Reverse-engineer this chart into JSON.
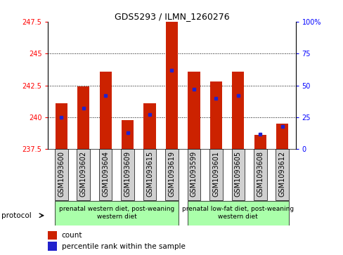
{
  "title": "GDS5293 / ILMN_1260276",
  "samples": [
    "GSM1093600",
    "GSM1093602",
    "GSM1093604",
    "GSM1093609",
    "GSM1093615",
    "GSM1093619",
    "GSM1093599",
    "GSM1093601",
    "GSM1093605",
    "GSM1093608",
    "GSM1093612"
  ],
  "count_values": [
    241.1,
    242.4,
    243.6,
    239.8,
    241.1,
    247.5,
    243.6,
    242.8,
    243.6,
    238.6,
    239.5
  ],
  "percentile_values": [
    25,
    32,
    42,
    13,
    27,
    62,
    47,
    40,
    42,
    12,
    18
  ],
  "ylim_left": [
    237.5,
    247.5
  ],
  "ylim_right": [
    0,
    100
  ],
  "yticks_left": [
    237.5,
    240.0,
    242.5,
    245.0,
    247.5
  ],
  "yticks_right": [
    0,
    25,
    50,
    75,
    100
  ],
  "ytick_labels_left": [
    "237.5",
    "240",
    "242.5",
    "245",
    "247.5"
  ],
  "ytick_labels_right": [
    "0",
    "25",
    "50",
    "75",
    "100%"
  ],
  "bar_color": "#cc2200",
  "pct_color": "#2222cc",
  "group1_label": "prenatal western diet, post-weaning\nwestern diet",
  "group2_label": "prenatal low-fat diet, post-weaning\nwestern diet",
  "group1_count": 6,
  "group2_count": 5,
  "protocol_label": "protocol",
  "legend_count": "count",
  "legend_pct": "percentile rank within the sample",
  "bar_width": 0.55,
  "base_value": 237.5,
  "grid_yticks": [
    240.0,
    242.5,
    245.0
  ],
  "gray_bg": "#d0d0d0",
  "green_bg": "#aaffaa",
  "label_fontsize": 7,
  "tick_fontsize": 7,
  "title_fontsize": 9
}
